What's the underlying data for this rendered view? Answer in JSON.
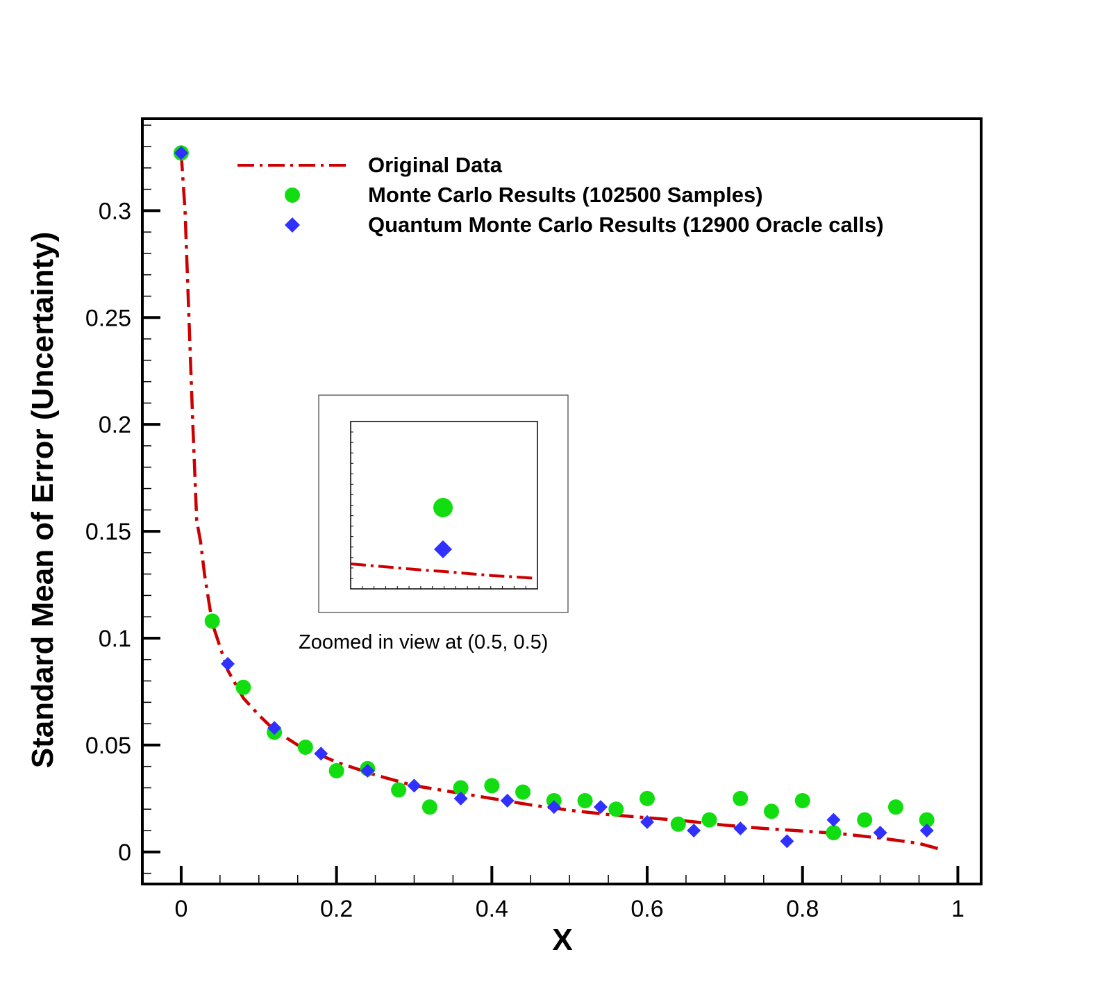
{
  "chart_data": {
    "type": "line",
    "xlabel": "X",
    "ylabel": "Standard Mean of Error (Uncertainty)",
    "xlim": [
      -0.05,
      1.03
    ],
    "ylim": [
      -0.015,
      0.343
    ],
    "x_ticks": [
      "0",
      "0.2",
      "0.4",
      "0.6",
      "0.8",
      "1"
    ],
    "y_ticks": [
      "0",
      "0.05",
      "0.1",
      "0.15",
      "0.2",
      "0.25",
      "0.3"
    ],
    "grid": false,
    "legend_position": "top-right",
    "colors": {
      "line": "#cc0000",
      "mc": "#11dd11",
      "qmc": "#3030ff"
    },
    "series": [
      {
        "name": "Original Data",
        "style": "dash-dot line",
        "x": [
          0,
          0.005,
          0.01,
          0.015,
          0.02,
          0.025,
          0.03,
          0.04,
          0.06,
          0.08,
          0.1,
          0.12,
          0.15,
          0.2,
          0.25,
          0.3,
          0.35,
          0.4,
          0.45,
          0.5,
          0.55,
          0.6,
          0.65,
          0.7,
          0.75,
          0.8,
          0.85,
          0.9,
          0.95,
          0.975
        ],
        "y": [
          0.327,
          0.3,
          0.25,
          0.2,
          0.155,
          0.145,
          0.13,
          0.107,
          0.085,
          0.072,
          0.064,
          0.057,
          0.05,
          0.042,
          0.036,
          0.031,
          0.028,
          0.025,
          0.022,
          0.0195,
          0.0175,
          0.016,
          0.0145,
          0.0125,
          0.011,
          0.0098,
          0.0085,
          0.0065,
          0.004,
          0.0015
        ]
      },
      {
        "name": "Monte Carlo Results (102500 Samples)",
        "style": "green circles",
        "x": [
          0,
          0.04,
          0.08,
          0.12,
          0.16,
          0.2,
          0.24,
          0.28,
          0.32,
          0.36,
          0.4,
          0.44,
          0.48,
          0.52,
          0.56,
          0.6,
          0.64,
          0.68,
          0.72,
          0.76,
          0.8,
          0.84,
          0.88,
          0.92,
          0.96
        ],
        "y": [
          0.327,
          0.108,
          0.077,
          0.056,
          0.049,
          0.038,
          0.039,
          0.029,
          0.021,
          0.03,
          0.031,
          0.028,
          0.024,
          0.024,
          0.02,
          0.025,
          0.013,
          0.015,
          0.025,
          0.019,
          0.024,
          0.009,
          0.015,
          0.021,
          0.015
        ]
      },
      {
        "name": "Quantum Monte Carlo Results (12900 Oracle calls)",
        "style": "blue diamonds",
        "x": [
          0,
          0.06,
          0.12,
          0.18,
          0.24,
          0.3,
          0.36,
          0.42,
          0.48,
          0.54,
          0.6,
          0.66,
          0.72,
          0.78,
          0.84,
          0.9,
          0.96
        ],
        "y": [
          0.327,
          0.088,
          0.058,
          0.046,
          0.038,
          0.031,
          0.025,
          0.024,
          0.021,
          0.021,
          0.014,
          0.01,
          0.011,
          0.005,
          0.015,
          0.009,
          0.01
        ]
      }
    ],
    "inset": {
      "caption": "Zoomed in view at (0.5, 0.5)",
      "note": "inset shows a circle marker, a diamond marker below it, and a gently decreasing dash-dot line"
    }
  }
}
